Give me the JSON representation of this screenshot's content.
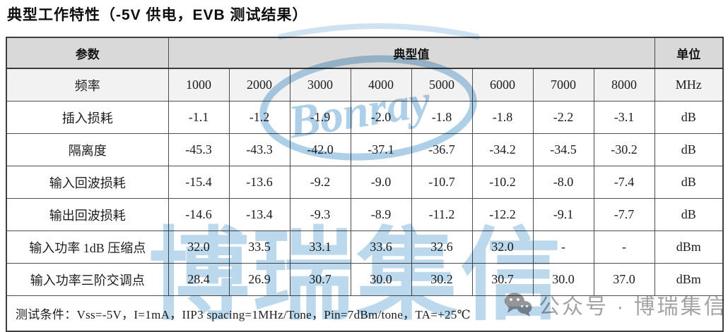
{
  "title": "典型工作特性（-5V 供电，EVB 测试结果）",
  "table": {
    "header": {
      "param": "参数",
      "typical": "典型值",
      "unit": "单位"
    },
    "freq_row": {
      "label": "频率",
      "values": [
        "1000",
        "2000",
        "3000",
        "4000",
        "5000",
        "6000",
        "7000",
        "8000"
      ],
      "unit": "MHz"
    },
    "rows": [
      {
        "label": "插入损耗",
        "values": [
          "-1.1",
          "-1.2",
          "-1.9",
          "-2.0",
          "-1.8",
          "-1.8",
          "-2.2",
          "-3.1"
        ],
        "unit": "dB"
      },
      {
        "label": "隔离度",
        "values": [
          "-45.3",
          "-43.3",
          "-42.0",
          "-37.1",
          "-36.7",
          "-34.2",
          "-34.5",
          "-30.2"
        ],
        "unit": "dB"
      },
      {
        "label": "输入回波损耗",
        "values": [
          "-15.4",
          "-13.6",
          "-9.2",
          "-9.0",
          "-10.7",
          "-10.2",
          "-8.0",
          "-7.4"
        ],
        "unit": "dB"
      },
      {
        "label": "输出回波损耗",
        "values": [
          "-14.6",
          "-13.4",
          "-9.3",
          "-8.9",
          "-11.2",
          "-12.2",
          "-9.1",
          "-7.7"
        ],
        "unit": "dB"
      },
      {
        "label": "输入功率 1dB 压缩点",
        "values": [
          "32.0",
          "33.5",
          "33.1",
          "33.6",
          "32.6",
          "32.0",
          "-",
          "-"
        ],
        "unit": "dBm"
      },
      {
        "label": "输入功率三阶交调点",
        "values": [
          "28.4",
          "26.9",
          "30.7",
          "30.0",
          "30.2",
          "30.7",
          "30.0",
          "37.0"
        ],
        "unit": "dBm"
      }
    ],
    "footer": "测试条件：Vss=-5V，I=1mA，IIP3 spacing=1MHz/Tone，Pin=7dBm/tone，TA=+25℃"
  },
  "watermark": {
    "logo_text": "Bonray",
    "big_text": "博瑞集信",
    "color": "#bcd8ec"
  },
  "overlay": {
    "wechat_label": "公众号 · 博瑞集信",
    "color": "#a3a3a3"
  },
  "colors": {
    "header_bg": "#d9d9d9",
    "freq_row_bg": "#f2f2f2",
    "border": "#4d4d4d",
    "text": "#1c1c1c"
  }
}
